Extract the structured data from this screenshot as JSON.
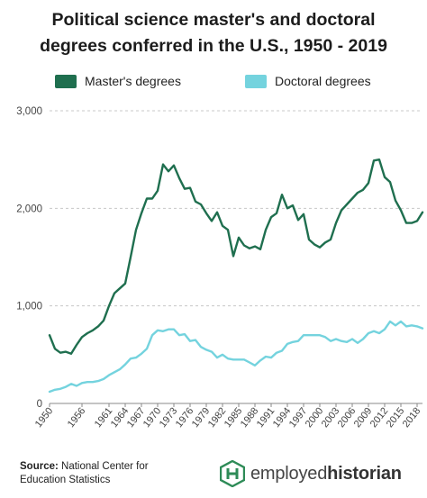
{
  "chart_data": {
    "type": "line",
    "title_line1": "Political science master's and doctoral",
    "title_line2": "degrees conferred in the U.S., 1950 - 2019",
    "xlabel": "",
    "ylabel": "",
    "xlim": [
      1950,
      2019
    ],
    "ylim": [
      0,
      3000
    ],
    "y_ticks": [
      0,
      1000,
      2000,
      3000
    ],
    "y_tick_labels": [
      "0",
      "1,000",
      "2,000",
      "3,000"
    ],
    "x_ticks": [
      1950,
      1956,
      1961,
      1964,
      1967,
      1970,
      1973,
      1976,
      1979,
      1982,
      1985,
      1988,
      1991,
      1994,
      1997,
      2000,
      2003,
      2006,
      2009,
      2012,
      2015,
      2018
    ],
    "grid": true,
    "legend_position": "top",
    "series": [
      {
        "name": "Master's degrees",
        "color": "#1f6f4f",
        "points": [
          [
            1950,
            700
          ],
          [
            1951,
            560
          ],
          [
            1952,
            520
          ],
          [
            1953,
            530
          ],
          [
            1954,
            510
          ],
          [
            1955,
            600
          ],
          [
            1956,
            680
          ],
          [
            1957,
            720
          ],
          [
            1958,
            750
          ],
          [
            1959,
            790
          ],
          [
            1960,
            850
          ],
          [
            1961,
            1000
          ],
          [
            1962,
            1130
          ],
          [
            1963,
            1180
          ],
          [
            1964,
            1230
          ],
          [
            1965,
            1500
          ],
          [
            1966,
            1780
          ],
          [
            1967,
            1950
          ],
          [
            1968,
            2100
          ],
          [
            1969,
            2100
          ],
          [
            1970,
            2180
          ],
          [
            1971,
            2450
          ],
          [
            1972,
            2380
          ],
          [
            1973,
            2440
          ],
          [
            1974,
            2310
          ],
          [
            1975,
            2200
          ],
          [
            1976,
            2210
          ],
          [
            1977,
            2070
          ],
          [
            1978,
            2040
          ],
          [
            1979,
            1950
          ],
          [
            1980,
            1870
          ],
          [
            1981,
            1960
          ],
          [
            1982,
            1820
          ],
          [
            1983,
            1780
          ],
          [
            1984,
            1510
          ],
          [
            1985,
            1700
          ],
          [
            1986,
            1620
          ],
          [
            1987,
            1590
          ],
          [
            1988,
            1610
          ],
          [
            1989,
            1580
          ],
          [
            1990,
            1780
          ],
          [
            1991,
            1910
          ],
          [
            1992,
            1950
          ],
          [
            1993,
            2140
          ],
          [
            1994,
            2000
          ],
          [
            1995,
            2030
          ],
          [
            1996,
            1880
          ],
          [
            1997,
            1940
          ],
          [
            1998,
            1680
          ],
          [
            1999,
            1630
          ],
          [
            2000,
            1600
          ],
          [
            2001,
            1650
          ],
          [
            2002,
            1680
          ],
          [
            2003,
            1850
          ],
          [
            2004,
            1980
          ],
          [
            2005,
            2040
          ],
          [
            2006,
            2100
          ],
          [
            2007,
            2160
          ],
          [
            2008,
            2190
          ],
          [
            2009,
            2260
          ],
          [
            2010,
            2490
          ],
          [
            2011,
            2500
          ],
          [
            2012,
            2320
          ],
          [
            2013,
            2270
          ],
          [
            2014,
            2080
          ],
          [
            2015,
            1980
          ],
          [
            2016,
            1850
          ],
          [
            2017,
            1850
          ],
          [
            2018,
            1870
          ],
          [
            2019,
            1960
          ]
        ]
      },
      {
        "name": "Doctoral degrees",
        "color": "#74d3de",
        "points": [
          [
            1950,
            120
          ],
          [
            1951,
            140
          ],
          [
            1952,
            150
          ],
          [
            1953,
            170
          ],
          [
            1954,
            200
          ],
          [
            1955,
            180
          ],
          [
            1956,
            210
          ],
          [
            1957,
            220
          ],
          [
            1958,
            220
          ],
          [
            1959,
            230
          ],
          [
            1960,
            250
          ],
          [
            1961,
            290
          ],
          [
            1962,
            320
          ],
          [
            1963,
            350
          ],
          [
            1964,
            400
          ],
          [
            1965,
            460
          ],
          [
            1966,
            470
          ],
          [
            1967,
            510
          ],
          [
            1968,
            560
          ],
          [
            1969,
            700
          ],
          [
            1970,
            750
          ],
          [
            1971,
            740
          ],
          [
            1972,
            760
          ],
          [
            1973,
            760
          ],
          [
            1974,
            700
          ],
          [
            1975,
            710
          ],
          [
            1976,
            640
          ],
          [
            1977,
            650
          ],
          [
            1978,
            580
          ],
          [
            1979,
            550
          ],
          [
            1980,
            530
          ],
          [
            1981,
            470
          ],
          [
            1982,
            500
          ],
          [
            1983,
            460
          ],
          [
            1984,
            450
          ],
          [
            1985,
            450
          ],
          [
            1986,
            450
          ],
          [
            1987,
            420
          ],
          [
            1988,
            390
          ],
          [
            1989,
            440
          ],
          [
            1990,
            480
          ],
          [
            1991,
            470
          ],
          [
            1992,
            520
          ],
          [
            1993,
            540
          ],
          [
            1994,
            610
          ],
          [
            1995,
            630
          ],
          [
            1996,
            640
          ],
          [
            1997,
            700
          ],
          [
            1998,
            700
          ],
          [
            1999,
            700
          ],
          [
            2000,
            700
          ],
          [
            2001,
            680
          ],
          [
            2002,
            640
          ],
          [
            2003,
            660
          ],
          [
            2004,
            640
          ],
          [
            2005,
            630
          ],
          [
            2006,
            660
          ],
          [
            2007,
            620
          ],
          [
            2008,
            660
          ],
          [
            2009,
            720
          ],
          [
            2010,
            740
          ],
          [
            2011,
            720
          ],
          [
            2012,
            760
          ],
          [
            2013,
            840
          ],
          [
            2014,
            800
          ],
          [
            2015,
            840
          ],
          [
            2016,
            790
          ],
          [
            2017,
            800
          ],
          [
            2018,
            790
          ],
          [
            2019,
            770
          ]
        ]
      }
    ]
  },
  "source": {
    "label": "Source:",
    "text_line1": " National Center for",
    "text_line2": "Education Statistics"
  },
  "brand": {
    "part1": "employed",
    "part2": "historian"
  }
}
